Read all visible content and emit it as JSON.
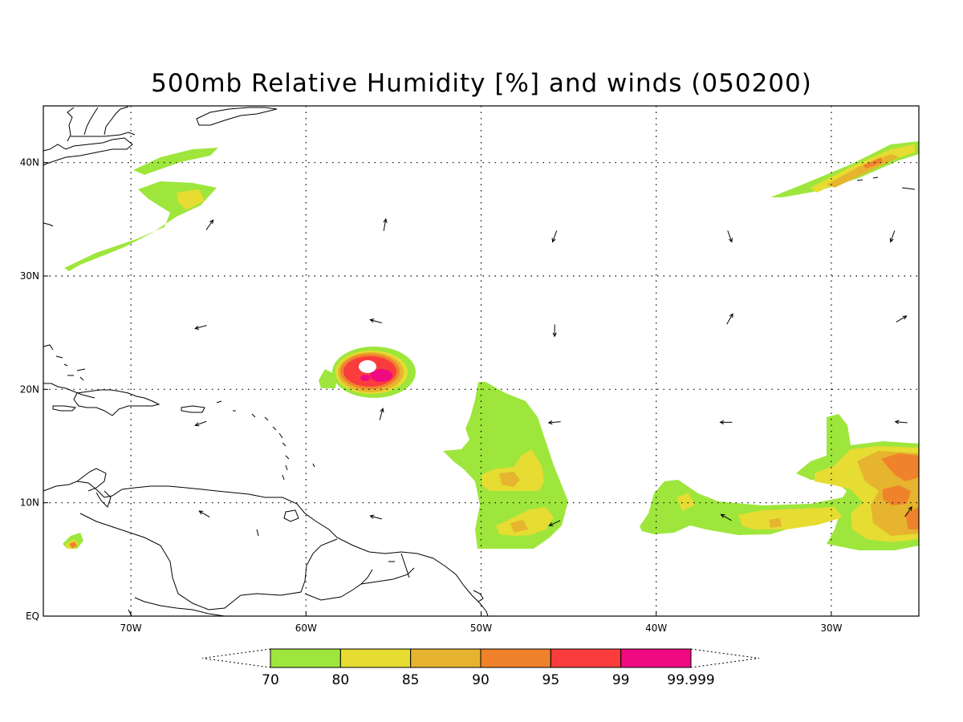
{
  "title": "500mb Relative Humidity [%] and winds (050200)",
  "map": {
    "lon_range": [
      -75,
      -25
    ],
    "lat_range": [
      0,
      45
    ],
    "x_ticks": [
      {
        "lon": -70,
        "label": "70W"
      },
      {
        "lon": -60,
        "label": "60W"
      },
      {
        "lon": -50,
        "label": "50W"
      },
      {
        "lon": -40,
        "label": "40W"
      },
      {
        "lon": -30,
        "label": "30W"
      }
    ],
    "y_ticks": [
      {
        "lat": 0,
        "label": "EQ"
      },
      {
        "lat": 10,
        "label": "10N"
      },
      {
        "lat": 20,
        "label": "20N"
      },
      {
        "lat": 30,
        "label": "30N"
      },
      {
        "lat": 40,
        "label": "40N"
      }
    ],
    "grid": true
  },
  "colorbar": {
    "levels": [
      "70",
      "80",
      "85",
      "90",
      "95",
      "99",
      "99.999"
    ],
    "colors": [
      "#9ee63c",
      "#e6dc32",
      "#e6b42e",
      "#f0822c",
      "#fa3c3c",
      "#f00a82"
    ]
  },
  "humidity_regions": [
    {
      "name": "ne-atlantic-band",
      "levels": [
        70,
        80,
        85,
        90
      ]
    },
    {
      "name": "nw-atlantic-band",
      "levels": [
        70,
        80
      ]
    },
    {
      "name": "central-atlantic-cyclone",
      "levels": [
        70,
        80,
        85,
        90,
        95,
        99
      ]
    },
    {
      "name": "lesser-antilles-plume",
      "levels": [
        70,
        80,
        85
      ]
    },
    {
      "name": "eastern-tropical-band",
      "levels": [
        70,
        80,
        85,
        90
      ]
    },
    {
      "name": "colombia-spot",
      "levels": [
        70,
        80,
        85,
        90
      ]
    }
  ],
  "wind_vectors": [
    {
      "lon": -65.5,
      "lat": 34.5,
      "dir": 35
    },
    {
      "lon": -55.5,
      "lat": 34.5,
      "dir": 10
    },
    {
      "lon": -45.8,
      "lat": 33.5,
      "dir": 200
    },
    {
      "lon": -35.8,
      "lat": 33.5,
      "dir": 160
    },
    {
      "lon": -26.5,
      "lat": 33.5,
      "dir": 200
    },
    {
      "lon": -66,
      "lat": 25.5,
      "dir": 255
    },
    {
      "lon": -56,
      "lat": 26,
      "dir": 285
    },
    {
      "lon": -45.8,
      "lat": 25.2,
      "dir": 180
    },
    {
      "lon": -35.8,
      "lat": 26.2,
      "dir": 30
    },
    {
      "lon": -26,
      "lat": 26.2,
      "dir": 60
    },
    {
      "lon": -66,
      "lat": 17,
      "dir": 250
    },
    {
      "lon": -55.7,
      "lat": 17.8,
      "dir": 15
    },
    {
      "lon": -45.8,
      "lat": 17.1,
      "dir": 265
    },
    {
      "lon": -36,
      "lat": 17.1,
      "dir": 270
    },
    {
      "lon": -26,
      "lat": 17.1,
      "dir": 275
    },
    {
      "lon": -65.8,
      "lat": 9,
      "dir": 300
    },
    {
      "lon": -56,
      "lat": 8.7,
      "dir": 285
    },
    {
      "lon": -45.8,
      "lat": 8.2,
      "dir": 245
    },
    {
      "lon": -36,
      "lat": 8.7,
      "dir": 300
    },
    {
      "lon": -25.6,
      "lat": 9.2,
      "dir": 35
    }
  ]
}
